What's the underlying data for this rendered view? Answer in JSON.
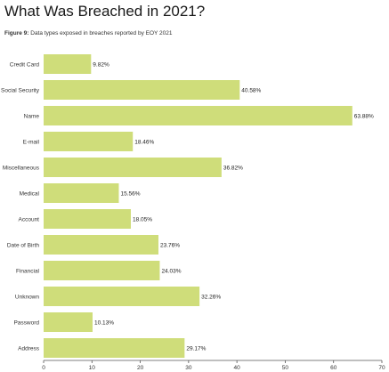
{
  "page": {
    "title": "What Was Breached in 2021?",
    "figure_label": "Figure 9:",
    "figure_caption": "Data types exposed in breaches reported by EOY 2021"
  },
  "chart_data": {
    "type": "bar",
    "orientation": "horizontal",
    "title": "",
    "xlabel": "",
    "ylabel": "",
    "categories": [
      "Credit Card",
      "Social Security",
      "Name",
      "E-mail",
      "Miscellaneous",
      "Medical",
      "Account",
      "Date of Birth",
      "Financial",
      "Unknown",
      "Password",
      "Address"
    ],
    "values": [
      9.82,
      40.58,
      63.88,
      18.46,
      36.82,
      15.56,
      18.05,
      23.76,
      24.03,
      32.26,
      10.13,
      29.17
    ],
    "data_labels": [
      "9.82%",
      "40.58%",
      "63.88%",
      "18.46%",
      "36.82%",
      "15.56%",
      "18.05%",
      "23.76%",
      "24.03%",
      "32.26%",
      "10.13%",
      "29.17%"
    ],
    "xlim": [
      0,
      70
    ],
    "xticks": [
      0,
      10,
      20,
      30,
      40,
      50,
      60,
      70
    ],
    "grid": false,
    "legend": "none",
    "bar_color": "#cfdd7a",
    "axis_color": "#555555"
  }
}
